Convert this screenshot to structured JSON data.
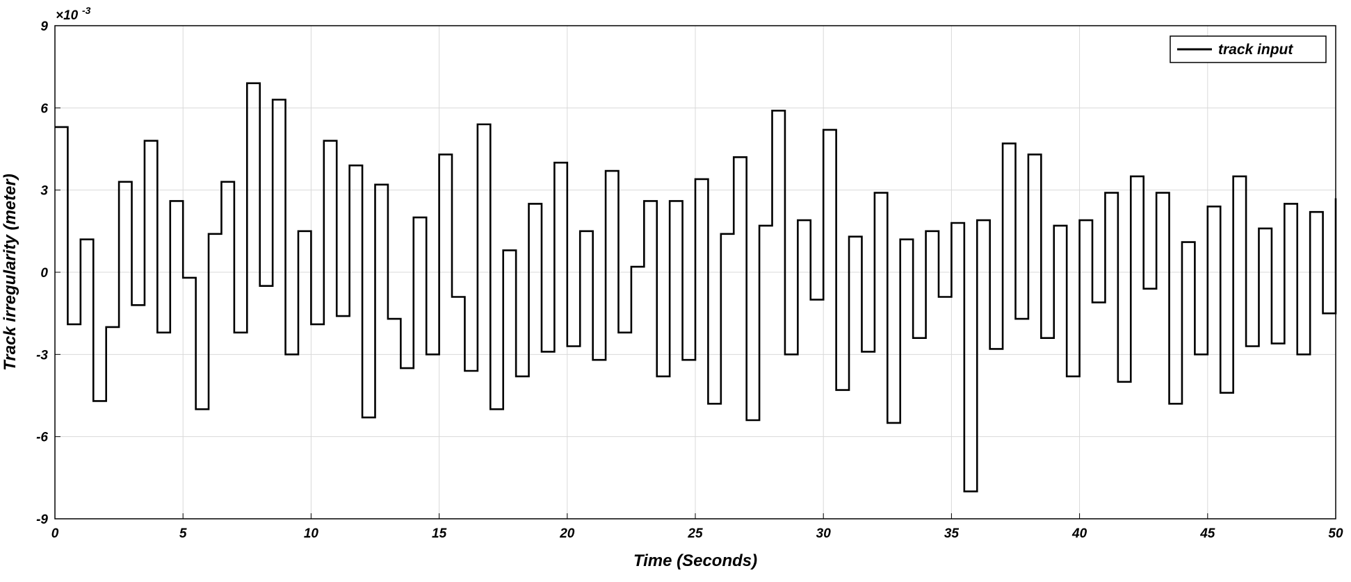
{
  "chart_data": {
    "type": "line",
    "drawstyle": "steps-post",
    "xlabel": "Time (Seconds)",
    "ylabel": "Track irregularity (meter)",
    "y_multiplier": "×10",
    "y_multiplier_exponent": "-3",
    "x": [
      0,
      0.5,
      1,
      1.5,
      2,
      2.5,
      3,
      3.5,
      4,
      4.5,
      5,
      5.5,
      6,
      6.5,
      7,
      7.5,
      8,
      8.5,
      9,
      9.5,
      10,
      10.5,
      11,
      11.5,
      12,
      12.5,
      13,
      13.5,
      14,
      14.5,
      15,
      15.5,
      16,
      16.5,
      17,
      17.5,
      18,
      18.5,
      19,
      19.5,
      20,
      20.5,
      21,
      21.5,
      22,
      22.5,
      23,
      23.5,
      24,
      24.5,
      25,
      25.5,
      26,
      26.5,
      27,
      27.5,
      28,
      28.5,
      29,
      29.5,
      30,
      30.5,
      31,
      31.5,
      32,
      32.5,
      33,
      33.5,
      34,
      34.5,
      35,
      35.5,
      36,
      36.5,
      37,
      37.5,
      38,
      38.5,
      39,
      39.5,
      40,
      40.5,
      41,
      41.5,
      42,
      42.5,
      43,
      43.5,
      44,
      44.5,
      45,
      45.5,
      46,
      46.5,
      47,
      47.5,
      48,
      48.5,
      49,
      49.5,
      50
    ],
    "series": [
      {
        "name": "track input",
        "color": "#000000",
        "values": [
          5.3,
          -1.9,
          1.2,
          -4.7,
          -2.0,
          3.3,
          -1.2,
          4.8,
          -2.2,
          2.6,
          -0.2,
          -5.0,
          1.4,
          3.3,
          -2.2,
          6.9,
          -0.5,
          6.3,
          -3.0,
          1.5,
          -1.9,
          4.8,
          -1.6,
          3.9,
          -5.3,
          3.2,
          -1.7,
          -3.5,
          2.0,
          -3.0,
          4.3,
          -0.9,
          -3.6,
          5.4,
          -5.0,
          0.8,
          -3.8,
          2.5,
          -2.9,
          4.0,
          -2.7,
          1.5,
          -3.2,
          3.7,
          -2.2,
          0.2,
          2.6,
          -3.8,
          2.6,
          -3.2,
          3.4,
          -4.8,
          1.4,
          4.2,
          -5.4,
          1.7,
          5.9,
          -3.0,
          1.9,
          -1.0,
          5.2,
          -4.3,
          1.3,
          -2.9,
          2.9,
          -5.5,
          1.2,
          -2.4,
          1.5,
          -0.9,
          1.8,
          -8.0,
          1.9,
          -2.8,
          4.7,
          -1.7,
          4.3,
          -2.4,
          1.7,
          -3.8,
          1.9,
          -1.1,
          2.9,
          -4.0,
          3.5,
          -0.6,
          2.9,
          -4.8,
          1.1,
          -3.0,
          2.4,
          -4.4,
          3.5,
          -2.7,
          1.6,
          -2.6,
          2.5,
          -3.0,
          2.2,
          -1.5,
          2.7
        ]
      }
    ],
    "xlim": [
      0,
      50
    ],
    "xticks": [
      0,
      5,
      10,
      15,
      20,
      25,
      30,
      35,
      40,
      45,
      50
    ],
    "ylim": [
      -9,
      9
    ],
    "yticks": [
      -9,
      -6,
      -3,
      0,
      3,
      6,
      9
    ],
    "grid": true,
    "legend": "upper right"
  }
}
